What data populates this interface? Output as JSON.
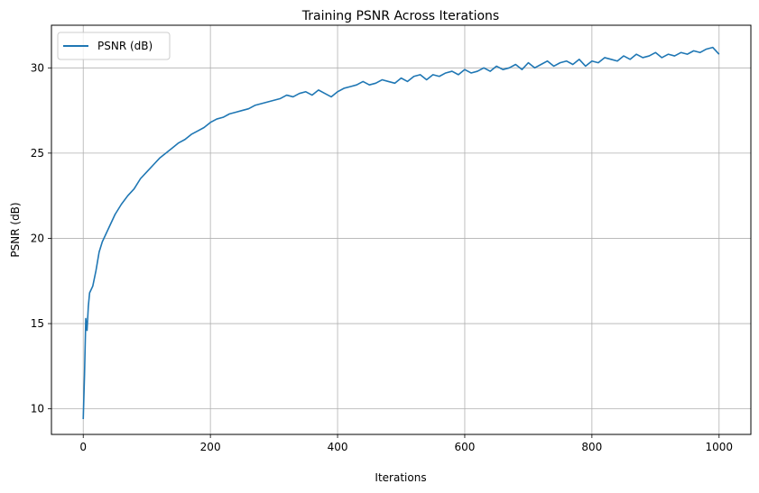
{
  "chart_data": {
    "type": "line",
    "title": "Training PSNR Across Iterations",
    "xlabel": "Iterations",
    "ylabel": "PSNR (dB)",
    "xlim": [
      -50,
      1050
    ],
    "ylim": [
      8.5,
      32.5
    ],
    "xticks": [
      0,
      200,
      400,
      600,
      800,
      1000
    ],
    "yticks": [
      10,
      15,
      20,
      25,
      30
    ],
    "grid": true,
    "legend_position": "top-left",
    "series": [
      {
        "name": "PSNR (dB)",
        "color": "#1f77b4",
        "x": [
          0,
          2,
          4,
          6,
          8,
          10,
          15,
          20,
          25,
          30,
          40,
          50,
          60,
          70,
          80,
          90,
          100,
          110,
          120,
          130,
          140,
          150,
          160,
          170,
          180,
          190,
          200,
          210,
          220,
          230,
          240,
          250,
          260,
          270,
          280,
          290,
          300,
          310,
          320,
          330,
          340,
          350,
          360,
          370,
          380,
          390,
          400,
          410,
          420,
          430,
          440,
          450,
          460,
          470,
          480,
          490,
          500,
          510,
          520,
          530,
          540,
          550,
          560,
          570,
          580,
          590,
          600,
          610,
          620,
          630,
          640,
          650,
          660,
          670,
          680,
          690,
          700,
          710,
          720,
          730,
          740,
          750,
          760,
          770,
          780,
          790,
          800,
          810,
          820,
          830,
          840,
          850,
          860,
          870,
          880,
          890,
          900,
          910,
          920,
          930,
          940,
          950,
          960,
          970,
          980,
          990,
          1000
        ],
        "values": [
          9.4,
          12.0,
          15.3,
          14.6,
          16.0,
          16.8,
          17.2,
          18.1,
          19.2,
          19.8,
          20.6,
          21.4,
          22.0,
          22.5,
          22.9,
          23.5,
          23.9,
          24.3,
          24.7,
          25.0,
          25.3,
          25.6,
          25.8,
          26.1,
          26.3,
          26.5,
          26.8,
          27.0,
          27.1,
          27.3,
          27.4,
          27.5,
          27.6,
          27.8,
          27.9,
          28.0,
          28.1,
          28.2,
          28.4,
          28.3,
          28.5,
          28.6,
          28.4,
          28.7,
          28.5,
          28.3,
          28.6,
          28.8,
          28.9,
          29.0,
          29.2,
          29.0,
          29.1,
          29.3,
          29.2,
          29.1,
          29.4,
          29.2,
          29.5,
          29.6,
          29.3,
          29.6,
          29.5,
          29.7,
          29.8,
          29.6,
          29.9,
          29.7,
          29.8,
          30.0,
          29.8,
          30.1,
          29.9,
          30.0,
          30.2,
          29.9,
          30.3,
          30.0,
          30.2,
          30.4,
          30.1,
          30.3,
          30.4,
          30.2,
          30.5,
          30.1,
          30.4,
          30.3,
          30.6,
          30.5,
          30.4,
          30.7,
          30.5,
          30.8,
          30.6,
          30.7,
          30.9,
          30.6,
          30.8,
          30.7,
          30.9,
          30.8,
          31.0,
          30.9,
          31.1,
          31.2,
          30.8
        ]
      }
    ]
  }
}
